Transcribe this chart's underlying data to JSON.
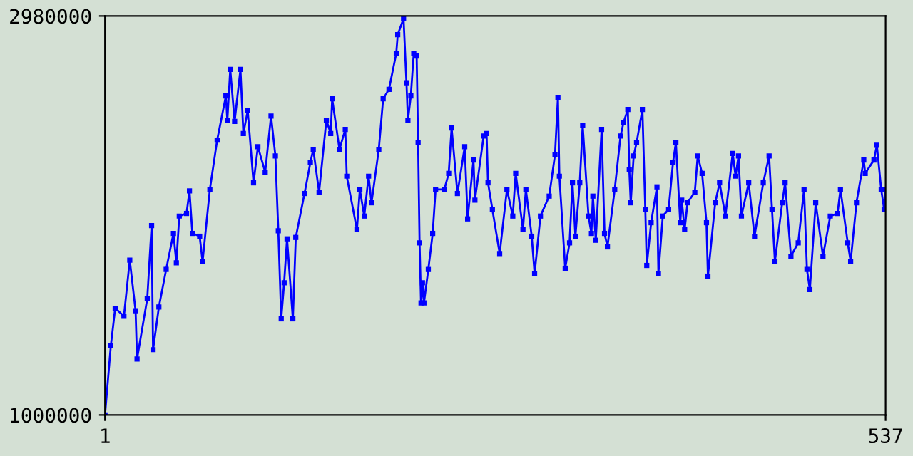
{
  "chart_data": {
    "type": "line",
    "marker": "square",
    "line_style": "solid",
    "grid": false,
    "legend": false,
    "xlim": [
      1,
      537
    ],
    "xticks": [
      1,
      537
    ],
    "ylim": [
      1000000,
      2980000
    ],
    "yticks": [
      1000000,
      2980000
    ],
    "series": [
      {
        "color": "#0000ff",
        "x": [
          1,
          5,
          8,
          14,
          18,
          22,
          23,
          30,
          33,
          34,
          38,
          43,
          48,
          50,
          52,
          57,
          59,
          61,
          66,
          68,
          73,
          78,
          84,
          85,
          87,
          90,
          94,
          96,
          99,
          103,
          106,
          111,
          115,
          118,
          120,
          122,
          124,
          126,
          130,
          132,
          138,
          142,
          144,
          148,
          153,
          156,
          157,
          162,
          166,
          167,
          174,
          176,
          179,
          182,
          184,
          189,
          192,
          196,
          201,
          202,
          206,
          208,
          209,
          211,
          213,
          215,
          216,
          217,
          218,
          219,
          220,
          223,
          226,
          228,
          234,
          237,
          239,
          243,
          248,
          250,
          254,
          255,
          261,
          263,
          264,
          267,
          272,
          277,
          281,
          283,
          288,
          290,
          294,
          296,
          300,
          306,
          310,
          312,
          313,
          317,
          320,
          322,
          324,
          327,
          329,
          333,
          335,
          336,
          338,
          342,
          344,
          346,
          351,
          355,
          357,
          360,
          361,
          362,
          364,
          366,
          370,
          372,
          373,
          376,
          380,
          381,
          384,
          388,
          391,
          393,
          396,
          397,
          399,
          401,
          406,
          408,
          411,
          414,
          415,
          420,
          423,
          427,
          432,
          434,
          436,
          438,
          443,
          447,
          453,
          457,
          459,
          461,
          466,
          468,
          472,
          477,
          481,
          483,
          485,
          489,
          494,
          499,
          504,
          506,
          511,
          513,
          517,
          522,
          523,
          529,
          531,
          534,
          536,
          537
        ],
        "values": [
          1000000,
          1344000,
          1530000,
          1490000,
          1768000,
          1517000,
          1278000,
          1576000,
          1940000,
          1324000,
          1536000,
          1722000,
          1901000,
          1755000,
          1987000,
          2000000,
          2112000,
          1901000,
          1887000,
          1762000,
          2119000,
          2364000,
          2583000,
          2463000,
          2715000,
          2457000,
          2715000,
          2397000,
          2510000,
          2152000,
          2331000,
          2205000,
          2483000,
          2285000,
          1914000,
          1477000,
          1656000,
          1874000,
          1477000,
          1881000,
          2099000,
          2252000,
          2318000,
          2106000,
          2463000,
          2397000,
          2569000,
          2318000,
          2417000,
          2185000,
          1920000,
          2119000,
          1987000,
          2185000,
          2053000,
          2318000,
          2569000,
          2616000,
          2795000,
          2887000,
          2967000,
          2649000,
          2463000,
          2583000,
          2795000,
          2781000,
          2351000,
          1854000,
          1556000,
          1656000,
          1556000,
          1722000,
          1901000,
          2119000,
          2119000,
          2199000,
          2424000,
          2099000,
          2331000,
          1973000,
          2265000,
          2066000,
          2384000,
          2397000,
          2152000,
          2020000,
          1801000,
          2119000,
          1987000,
          2199000,
          1920000,
          2119000,
          1887000,
          1702000,
          1987000,
          2086000,
          2291000,
          2576000,
          2185000,
          1728000,
          1854000,
          2152000,
          1887000,
          2152000,
          2437000,
          1987000,
          1901000,
          2086000,
          1867000,
          2417000,
          1901000,
          1834000,
          2119000,
          2384000,
          2450000,
          2516000,
          2218000,
          2053000,
          2285000,
          2351000,
          2516000,
          2020000,
          1742000,
          1954000,
          2132000,
          1702000,
          1987000,
          2020000,
          2252000,
          2351000,
          1954000,
          2066000,
          1920000,
          2053000,
          2106000,
          2285000,
          2199000,
          1954000,
          1689000,
          2053000,
          2152000,
          1987000,
          2298000,
          2185000,
          2285000,
          1987000,
          2152000,
          1887000,
          2152000,
          2285000,
          2020000,
          1762000,
          2053000,
          2152000,
          1788000,
          1854000,
          2119000,
          1722000,
          1622000,
          2053000,
          1788000,
          1987000,
          2000000,
          2119000,
          1854000,
          1762000,
          2053000,
          2265000,
          2199000,
          2265000,
          2338000,
          2119000,
          2020000,
          2119000
        ]
      }
    ]
  }
}
